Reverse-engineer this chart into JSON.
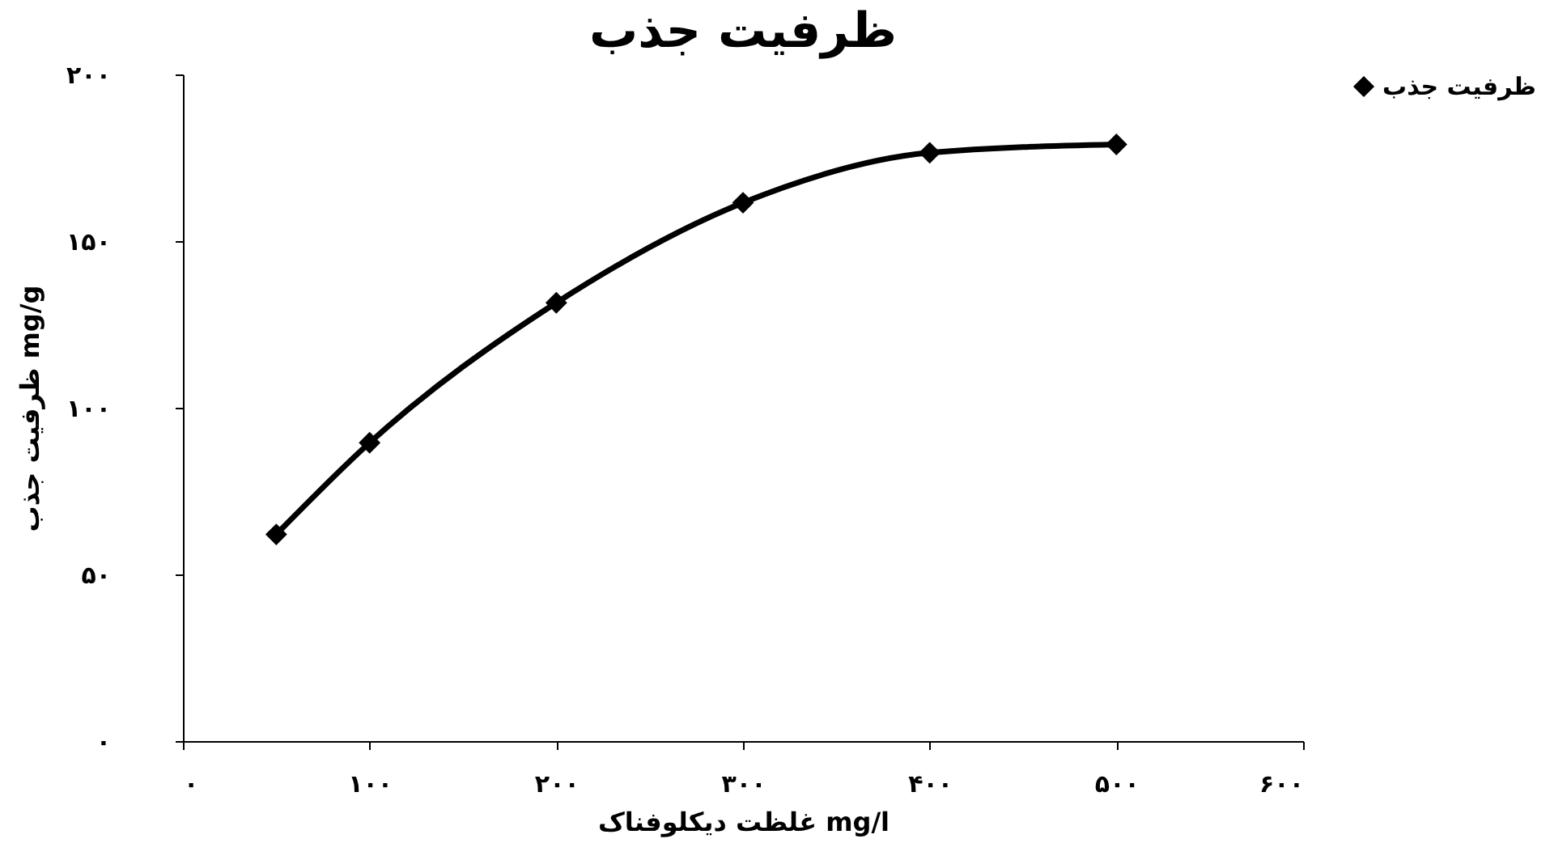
{
  "chart_data": {
    "type": "line",
    "title": "ظرفیت جذب",
    "xlabel": "غلظت دیکلوفناک mg/l",
    "ylabel": "ظرفیت جذب mg/g",
    "x": [
      50,
      100,
      200,
      300,
      400,
      500
    ],
    "series": [
      {
        "name": "ظرفیت جذب",
        "color": "#000000",
        "values": [
          62,
          89.5,
          131.5,
          161.5,
          176.5,
          179
        ]
      }
    ],
    "xlim": [
      0,
      600
    ],
    "xticks": [
      {
        "value": 0,
        "label": "۰"
      },
      {
        "value": 100,
        "label": "۱۰۰"
      },
      {
        "value": 200,
        "label": "۲۰۰"
      },
      {
        "value": 300,
        "label": "۳۰۰"
      },
      {
        "value": 400,
        "label": "۴۰۰"
      },
      {
        "value": 500,
        "label": "۵۰۰"
      },
      {
        "value": 600,
        "label": "۶۰۰"
      }
    ],
    "ylim": [
      0,
      200
    ],
    "yticks": [
      {
        "value": 0,
        "label": "۰"
      },
      {
        "value": 50,
        "label": "۵۰"
      },
      {
        "value": 100,
        "label": "۱۰۰"
      },
      {
        "value": 150,
        "label": "۱۵۰"
      },
      {
        "value": 200,
        "label": "۲۰۰"
      }
    ],
    "grid": false,
    "legend": "right",
    "marker": "diamond",
    "line_style": "solid"
  }
}
